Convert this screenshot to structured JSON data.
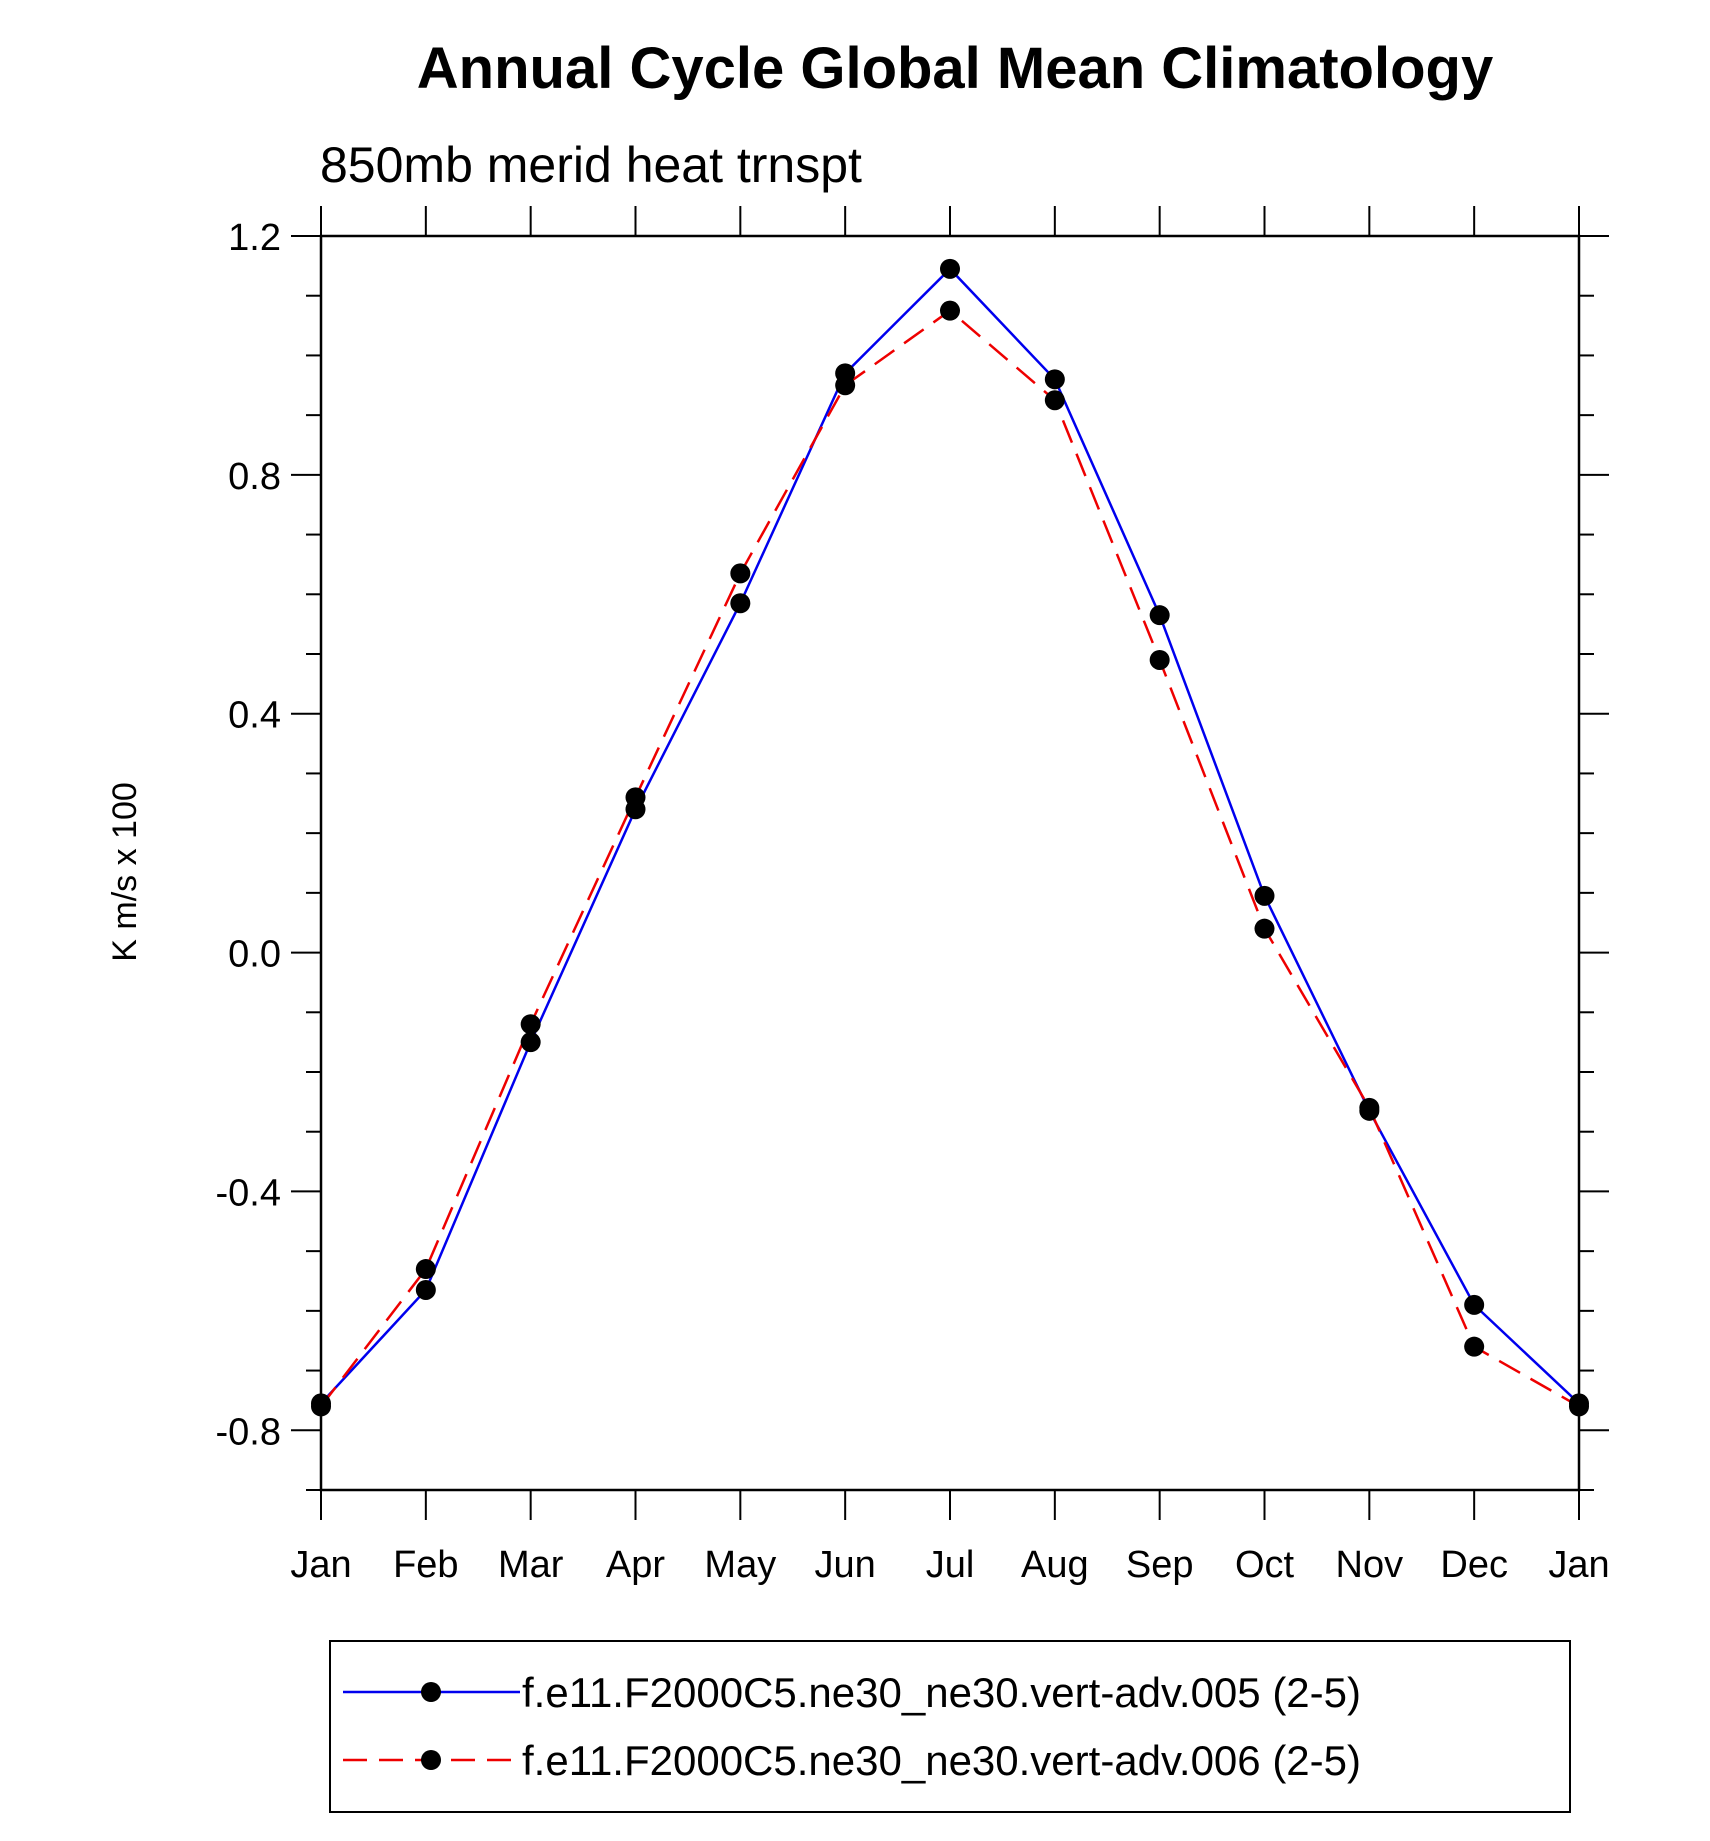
{
  "chart_data": {
    "type": "line",
    "title": "Annual Cycle Global Mean Climatology",
    "subtitle": "850mb merid heat trnspt",
    "ylabel": "K m/s x 100",
    "xlabel": "",
    "categories": [
      "Jan",
      "Feb",
      "Mar",
      "Apr",
      "May",
      "Jun",
      "Jul",
      "Aug",
      "Sep",
      "Oct",
      "Nov",
      "Dec",
      "Jan"
    ],
    "ylim": [
      -0.9,
      1.2
    ],
    "yticks": [
      -0.8,
      -0.4,
      0.0,
      0.4,
      0.8,
      1.2
    ],
    "ytick_labels": [
      "-0.8",
      "-0.4",
      "0.0",
      "0.4",
      "0.8",
      "1.2"
    ],
    "y_minor_step": 0.1,
    "legend_position": "bottom",
    "series": [
      {
        "name": "f.e11.F2000C5.ne30_ne30.vert-adv.005 (2-5)",
        "color": "#0000ee",
        "dash": "solid",
        "values": [
          -0.755,
          -0.565,
          -0.15,
          0.24,
          0.585,
          0.97,
          1.145,
          0.96,
          0.565,
          0.095,
          -0.265,
          -0.59,
          -0.755
        ]
      },
      {
        "name": "f.e11.F2000C5.ne30_ne30.vert-adv.006 (2-5)",
        "color": "#ee0000",
        "dash": "dashed",
        "values": [
          -0.76,
          -0.53,
          -0.12,
          0.26,
          0.635,
          0.95,
          1.075,
          0.925,
          0.49,
          0.04,
          -0.26,
          -0.66,
          -0.76
        ]
      }
    ]
  }
}
